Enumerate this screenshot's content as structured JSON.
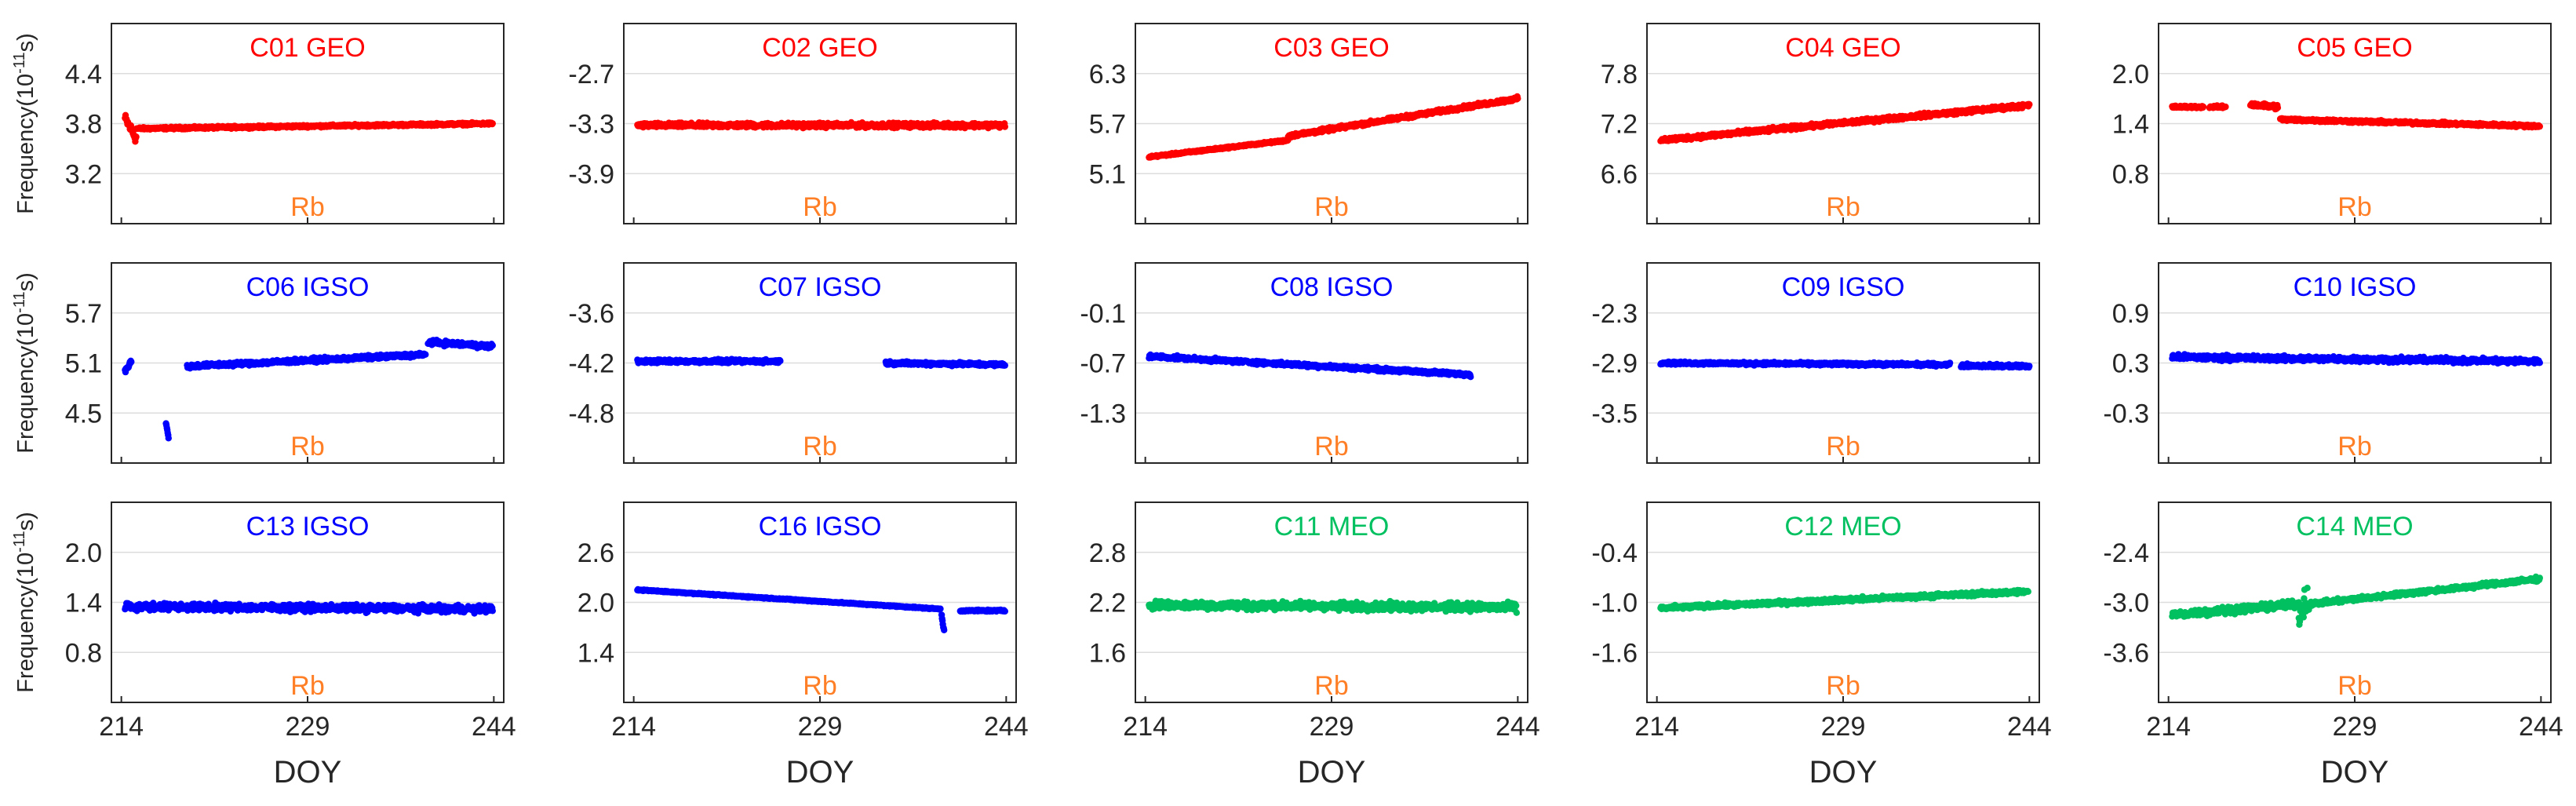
{
  "chart_data": [
    {
      "type": "scatter",
      "title": "C01 GEO",
      "clock": "Rb",
      "color": "#ff0000",
      "ylabel": "Frequency(10^-11s)",
      "xlabel": "",
      "ylim": [
        2.6,
        5.0
      ],
      "yticks": [
        "3.2",
        "3.8",
        "4.4"
      ],
      "xticks": [
        "214",
        "229",
        "244"
      ],
      "segments": [
        {
          "x": [
            214.3,
            215.2
          ],
          "y": [
            3.86,
            3.62
          ],
          "noise": 0.09
        },
        {
          "x": [
            215.2,
            243.9
          ],
          "y": [
            3.74,
            3.8
          ],
          "noise": 0.02
        }
      ]
    },
    {
      "type": "scatter",
      "title": "C02 GEO",
      "clock": "Rb",
      "color": "#ff0000",
      "ylabel": "",
      "xlabel": "",
      "ylim": [
        -4.5,
        -2.1
      ],
      "yticks": [
        "-3.9",
        "-3.3",
        "-2.7"
      ],
      "xticks": [
        "214",
        "229",
        "244"
      ],
      "segments": [
        {
          "x": [
            214.3,
            243.9
          ],
          "y": [
            -3.32,
            -3.32
          ],
          "noise": 0.04
        }
      ]
    },
    {
      "type": "scatter",
      "title": "C03 GEO",
      "clock": "Rb",
      "color": "#ff0000",
      "ylabel": "",
      "xlabel": "",
      "ylim": [
        4.5,
        6.9
      ],
      "yticks": [
        "5.1",
        "5.7",
        "6.3"
      ],
      "xticks": [
        "214",
        "229",
        "244"
      ],
      "segments": [
        {
          "x": [
            214.3,
            225.5
          ],
          "y": [
            5.3,
            5.5
          ],
          "noise": 0.015
        },
        {
          "x": [
            225.5,
            244.0
          ],
          "y": [
            5.55,
            6.0
          ],
          "noise": 0.03
        }
      ]
    },
    {
      "type": "scatter",
      "title": "C04 GEO",
      "clock": "Rb",
      "color": "#ff0000",
      "ylabel": "",
      "xlabel": "",
      "ylim": [
        6.0,
        8.4
      ],
      "yticks": [
        "6.6",
        "7.2",
        "7.8"
      ],
      "xticks": [
        "214",
        "229",
        "244"
      ],
      "segments": [
        {
          "x": [
            214.3,
            244.0
          ],
          "y": [
            7.0,
            7.42
          ],
          "noise": 0.035
        }
      ]
    },
    {
      "type": "scatter",
      "title": "C05 GEO",
      "clock": "Rb",
      "color": "#ff0000",
      "ylabel": "",
      "xlabel": "",
      "ylim": [
        0.2,
        2.6
      ],
      "yticks": [
        "0.8",
        "1.4",
        "2.0"
      ],
      "xticks": [
        "214",
        "229",
        "244"
      ],
      "segments": [
        {
          "x": [
            214.3,
            216.8
          ],
          "y": [
            1.6,
            1.6
          ],
          "noise": 0.02
        },
        {
          "x": [
            217.3,
            218.6
          ],
          "y": [
            1.6,
            1.6
          ],
          "noise": 0.02
        },
        {
          "x": [
            220.6,
            222.8
          ],
          "y": [
            1.63,
            1.6
          ],
          "noise": 0.04
        },
        {
          "x": [
            223.0,
            243.9
          ],
          "y": [
            1.45,
            1.37
          ],
          "noise": 0.025
        }
      ]
    },
    {
      "type": "scatter",
      "title": "C06 IGSO",
      "clock": "Rb",
      "color": "#0000ff",
      "ylabel": "Frequency(10^-11s)",
      "xlabel": "",
      "ylim": [
        3.9,
        6.3
      ],
      "yticks": [
        "4.5",
        "5.1",
        "5.7"
      ],
      "xticks": [
        "214",
        "229",
        "244"
      ],
      "segments": [
        {
          "x": [
            214.3,
            214.8
          ],
          "y": [
            5.0,
            5.12
          ],
          "noise": 0.04
        },
        {
          "x": [
            217.6,
            217.8
          ],
          "y": [
            4.38,
            4.2
          ],
          "noise": 0.02
        },
        {
          "x": [
            219.3,
            238.5
          ],
          "y": [
            5.06,
            5.2
          ],
          "noise": 0.035
        },
        {
          "x": [
            238.7,
            243.9
          ],
          "y": [
            5.35,
            5.3
          ],
          "noise": 0.04
        }
      ]
    },
    {
      "type": "scatter",
      "title": "C07 IGSO",
      "clock": "Rb",
      "color": "#0000ff",
      "ylabel": "",
      "xlabel": "",
      "ylim": [
        -5.4,
        -3.0
      ],
      "yticks": [
        "-4.8",
        "-4.2",
        "-3.6"
      ],
      "xticks": [
        "214",
        "229",
        "244"
      ],
      "segments": [
        {
          "x": [
            214.3,
            225.8
          ],
          "y": [
            -4.18,
            -4.18
          ],
          "noise": 0.03
        },
        {
          "x": [
            234.3,
            243.9
          ],
          "y": [
            -4.2,
            -4.22
          ],
          "noise": 0.03
        }
      ]
    },
    {
      "type": "scatter",
      "title": "C08 IGSO",
      "clock": "Rb",
      "color": "#0000ff",
      "ylabel": "",
      "xlabel": "",
      "ylim": [
        -1.9,
        0.5
      ],
      "yticks": [
        "-1.3",
        "-0.7",
        "-0.1"
      ],
      "xticks": [
        "214",
        "229",
        "244"
      ],
      "segments": [
        {
          "x": [
            214.3,
            240.2
          ],
          "y": [
            -0.62,
            -0.84
          ],
          "noise": 0.03
        }
      ]
    },
    {
      "type": "scatter",
      "title": "C09 IGSO",
      "clock": "Rb",
      "color": "#0000ff",
      "ylabel": "",
      "xlabel": "",
      "ylim": [
        -4.1,
        -1.7
      ],
      "yticks": [
        "-3.5",
        "-2.9",
        "-2.3"
      ],
      "xticks": [
        "214",
        "229",
        "244"
      ],
      "segments": [
        {
          "x": [
            214.3,
            237.6
          ],
          "y": [
            -2.9,
            -2.92
          ],
          "noise": 0.025
        },
        {
          "x": [
            238.5,
            244.0
          ],
          "y": [
            -2.93,
            -2.94
          ],
          "noise": 0.03
        }
      ]
    },
    {
      "type": "scatter",
      "title": "C10 IGSO",
      "clock": "Rb",
      "color": "#0000ff",
      "ylabel": "",
      "xlabel": "",
      "ylim": [
        -0.9,
        1.5
      ],
      "yticks": [
        "-0.3",
        "0.3",
        "0.9"
      ],
      "xticks": [
        "214",
        "229",
        "244"
      ],
      "segments": [
        {
          "x": [
            214.3,
            243.9
          ],
          "y": [
            0.37,
            0.32
          ],
          "noise": 0.045
        }
      ]
    },
    {
      "type": "scatter",
      "title": "C13 IGSO",
      "clock": "Rb",
      "color": "#0000ff",
      "ylabel": "Frequency(10^-11s)",
      "xlabel": "DOY",
      "ylim": [
        0.2,
        2.6
      ],
      "yticks": [
        "0.8",
        "1.4",
        "2.0"
      ],
      "xticks": [
        "214",
        "229",
        "244"
      ],
      "segments": [
        {
          "x": [
            214.3,
            243.9
          ],
          "y": [
            1.35,
            1.32
          ],
          "noise": 0.06
        }
      ]
    },
    {
      "type": "scatter",
      "title": "C16 IGSO",
      "clock": "Rb",
      "color": "#0000ff",
      "ylabel": "",
      "xlabel": "DOY",
      "ylim": [
        0.8,
        3.2
      ],
      "yticks": [
        "1.4",
        "2.0",
        "2.6"
      ],
      "xticks": [
        "214",
        "229",
        "244"
      ],
      "segments": [
        {
          "x": [
            214.3,
            238.7
          ],
          "y": [
            2.15,
            1.92
          ],
          "noise": 0.01
        },
        {
          "x": [
            238.8,
            239.0
          ],
          "y": [
            1.85,
            1.65
          ],
          "noise": 0.03
        },
        {
          "x": [
            240.3,
            243.9
          ],
          "y": [
            1.9,
            1.9
          ],
          "noise": 0.015
        }
      ]
    },
    {
      "type": "scatter",
      "title": "C11 MEO",
      "clock": "Rb",
      "color": "#00c060",
      "ylabel": "",
      "xlabel": "DOY",
      "ylim": [
        1.0,
        3.4
      ],
      "yticks": [
        "1.6",
        "2.2",
        "2.8"
      ],
      "xticks": [
        "214",
        "229",
        "244"
      ],
      "segments": [
        {
          "x": [
            214.3,
            243.9
          ],
          "y": [
            2.17,
            2.14
          ],
          "noise": 0.07
        }
      ]
    },
    {
      "type": "scatter",
      "title": "C12 MEO",
      "clock": "Rb",
      "color": "#00c060",
      "ylabel": "",
      "xlabel": "DOY",
      "ylim": [
        -2.2,
        0.2
      ],
      "yticks": [
        "-1.6",
        "-1.0",
        "-0.4"
      ],
      "xticks": [
        "214",
        "229",
        "244"
      ],
      "segments": [
        {
          "x": [
            214.3,
            243.9
          ],
          "y": [
            -1.07,
            -0.87
          ],
          "noise": 0.035
        }
      ]
    },
    {
      "type": "scatter",
      "title": "C14 MEO",
      "clock": "Rb",
      "color": "#00c060",
      "ylabel": "",
      "xlabel": "DOY",
      "ylim": [
        -4.2,
        -1.8
      ],
      "yticks": [
        "-3.6",
        "-3.0",
        "-2.4"
      ],
      "xticks": [
        "214",
        "229",
        "244"
      ],
      "segments": [
        {
          "x": [
            214.3,
            224.5
          ],
          "y": [
            -3.15,
            -3.02
          ],
          "noise": 0.06
        },
        {
          "x": [
            224.5,
            225.3
          ],
          "y": [
            -3.1,
            -2.95
          ],
          "noise": 0.3
        },
        {
          "x": [
            225.4,
            243.9
          ],
          "y": [
            -3.02,
            -2.72
          ],
          "noise": 0.035
        }
      ]
    }
  ]
}
